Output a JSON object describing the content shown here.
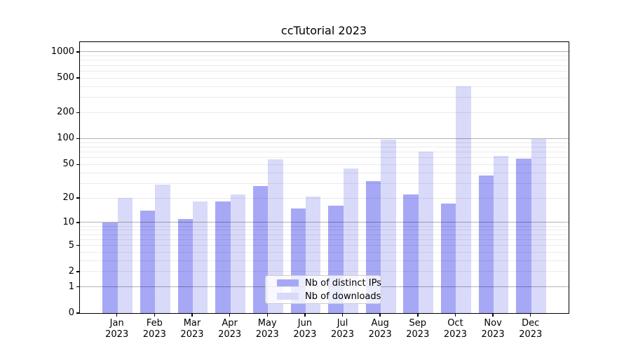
{
  "title": "ccTutorial 2023",
  "year": "2023",
  "chart_data": {
    "type": "bar",
    "title": "ccTutorial 2023",
    "categories": [
      "Jan",
      "Feb",
      "Mar",
      "Apr",
      "May",
      "Jun",
      "Jul",
      "Aug",
      "Sep",
      "Oct",
      "Nov",
      "Dec"
    ],
    "year": "2023",
    "series": [
      {
        "name": "Nb of distinct IPs",
        "color": "#a6a8f6",
        "values": [
          10,
          14,
          11,
          18,
          28,
          15,
          16,
          32,
          22,
          17,
          37,
          58
        ]
      },
      {
        "name": "Nb of downloads",
        "color": "#d9daf9",
        "values": [
          20,
          29,
          18,
          22,
          57,
          21,
          45,
          98,
          71,
          400,
          63,
          100
        ]
      }
    ],
    "xlabel": "",
    "ylabel": "",
    "yscale": "log1p",
    "yticks": [
      0,
      1,
      2,
      5,
      10,
      20,
      50,
      100,
      200,
      500,
      1000
    ],
    "ylim": [
      0,
      1320
    ],
    "grid": "on",
    "grid_major_at": [
      1,
      10,
      100,
      1000
    ],
    "legend_position": "lower center",
    "legend_labels": [
      "Nb of distinct IPs",
      "Nb of downloads"
    ]
  }
}
